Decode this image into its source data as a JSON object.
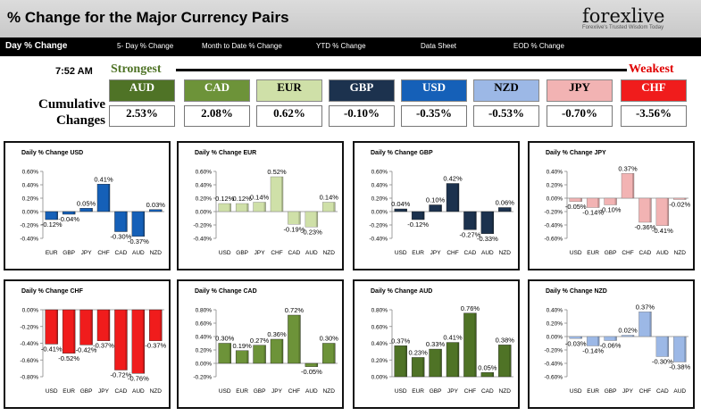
{
  "header": {
    "title": "% Change for the Major Currency Pairs",
    "logo_text": "forexlive",
    "logo_tagline": "Forexlive's Trusted Wisdom Today"
  },
  "nav": {
    "items": [
      "Day % Change",
      "5- Day % Change",
      "Month to Date % Change",
      "YTD % Change",
      "Data Sheet",
      "EOD % Change"
    ]
  },
  "summary": {
    "time": "7:52 AM",
    "strongest_label": "Strongest",
    "weakest_label": "Weakest",
    "cumulative_label_1": "Cumulative",
    "cumulative_label_2": "Changes",
    "currencies": [
      {
        "code": "AUD",
        "value": "2.53%",
        "color": "#4f7326",
        "text_color": "#ffffff"
      },
      {
        "code": "CAD",
        "value": "2.08%",
        "color": "#6d9339",
        "text_color": "#ffffff"
      },
      {
        "code": "EUR",
        "value": "0.62%",
        "color": "#cfe0a8",
        "text_color": "#000000"
      },
      {
        "code": "GBP",
        "value": "-0.10%",
        "color": "#1c324e",
        "text_color": "#ffffff"
      },
      {
        "code": "USD",
        "value": "-0.35%",
        "color": "#1560b8",
        "text_color": "#ffffff"
      },
      {
        "code": "NZD",
        "value": "-0.53%",
        "color": "#9cb8e6",
        "text_color": "#000000"
      },
      {
        "code": "JPY",
        "value": "-0.70%",
        "color": "#f2b3b3",
        "text_color": "#000000"
      },
      {
        "code": "CHF",
        "value": "-3.56%",
        "color": "#f01c1c",
        "text_color": "#ffffff"
      }
    ]
  },
  "chart_data": [
    {
      "type": "bar",
      "title": "Daily % Change USD",
      "categories": [
        "EUR",
        "GBP",
        "JPY",
        "CHF",
        "CAD",
        "AUD",
        "NZD"
      ],
      "values": [
        -0.12,
        -0.04,
        0.05,
        0.41,
        -0.3,
        -0.37,
        0.03
      ],
      "labels": [
        "-0.12%",
        "-0.04%",
        "0.05%",
        "0.41%",
        "-0.30%",
        "-0.37%",
        "0.03%"
      ],
      "yticks": [
        "0.60%",
        "0.40%",
        "0.20%",
        "0.00%",
        "-0.20%",
        "-0.40%"
      ],
      "ylim": [
        -0.4,
        0.6
      ],
      "color": "#1560b8",
      "bg": "#ffffff"
    },
    {
      "type": "bar",
      "title": "Daily % Change EUR",
      "categories": [
        "USD",
        "GBP",
        "JPY",
        "CHF",
        "CAD",
        "AUD",
        "NZD"
      ],
      "values": [
        0.12,
        0.12,
        0.14,
        0.52,
        -0.19,
        -0.23,
        0.14
      ],
      "labels": [
        "0.12%",
        "0.12%",
        "0.14%",
        "0.52%",
        "-0.19%",
        "-0.23%",
        "0.14%"
      ],
      "yticks": [
        "0.60%",
        "0.40%",
        "0.20%",
        "0.00%",
        "-0.20%",
        "-0.40%"
      ],
      "ylim": [
        -0.4,
        0.6
      ],
      "color": "#cfe0a8",
      "bg": "#ffffff"
    },
    {
      "type": "bar",
      "title": "Daily % Change GBP",
      "categories": [
        "USD",
        "EUR",
        "JPY",
        "CHF",
        "CAD",
        "AUD",
        "NZD"
      ],
      "values": [
        0.04,
        -0.12,
        0.1,
        0.42,
        -0.27,
        -0.33,
        0.06
      ],
      "labels": [
        "0.04%",
        "-0.12%",
        "0.10%",
        "0.42%",
        "-0.27%",
        "-0.33%",
        "0.06%"
      ],
      "yticks": [
        "0.60%",
        "0.40%",
        "0.20%",
        "0.00%",
        "-0.20%",
        "-0.40%"
      ],
      "ylim": [
        -0.4,
        0.6
      ],
      "color": "#1c324e",
      "bg": "#ffffff"
    },
    {
      "type": "bar",
      "title": "Daily % Change JPY",
      "categories": [
        "USD",
        "EUR",
        "GBP",
        "CHF",
        "CAD",
        "AUD",
        "NZD"
      ],
      "values": [
        -0.05,
        -0.14,
        -0.1,
        0.37,
        -0.36,
        -0.41,
        -0.02
      ],
      "labels": [
        "-0.05%",
        "-0.14%",
        "-0.10%",
        "0.37%",
        "-0.36%",
        "-0.41%",
        "-0.02%"
      ],
      "yticks": [
        "0.40%",
        "0.20%",
        "0.00%",
        "-0.20%",
        "-0.40%",
        "-0.60%"
      ],
      "ylim": [
        -0.6,
        0.4
      ],
      "color": "#f2b3b3",
      "bg": "#ffffff"
    },
    {
      "type": "bar",
      "title": "Daily % Change CHF",
      "categories": [
        "USD",
        "EUR",
        "GBP",
        "JPY",
        "CAD",
        "AUD",
        "NZD"
      ],
      "values": [
        -0.41,
        -0.52,
        -0.42,
        -0.37,
        -0.72,
        -0.76,
        -0.37
      ],
      "labels": [
        "-0.41%",
        "-0.52%",
        "-0.42%",
        "-0.37%",
        "-0.72%",
        "-0.76%",
        "-0.37%"
      ],
      "yticks": [
        "0.00%",
        "-0.20%",
        "-0.40%",
        "-0.60%",
        "-0.80%"
      ],
      "ylim": [
        -0.8,
        0.0
      ],
      "color": "#f01c1c",
      "bg": "#ffffff"
    },
    {
      "type": "bar",
      "title": "Daily % Change CAD",
      "categories": [
        "USD",
        "EUR",
        "GBP",
        "JPY",
        "CHF",
        "AUD",
        "NZD"
      ],
      "values": [
        0.3,
        0.19,
        0.27,
        0.36,
        0.72,
        -0.05,
        0.3
      ],
      "labels": [
        "0.30%",
        "0.19%",
        "0.27%",
        "0.36%",
        "0.72%",
        "-0.05%",
        "0.30%"
      ],
      "yticks": [
        "0.80%",
        "0.60%",
        "0.40%",
        "0.20%",
        "0.00%",
        "-0.20%"
      ],
      "ylim": [
        -0.2,
        0.8
      ],
      "color": "#6d9339",
      "bg": "#ffffff"
    },
    {
      "type": "bar",
      "title": "Daily % Change AUD",
      "categories": [
        "USD",
        "EUR",
        "GBP",
        "JPY",
        "CHF",
        "CAD",
        "NZD"
      ],
      "values": [
        0.37,
        0.23,
        0.33,
        0.41,
        0.76,
        0.05,
        0.38
      ],
      "labels": [
        "0.37%",
        "0.23%",
        "0.33%",
        "0.41%",
        "0.76%",
        "0.05%",
        "0.38%"
      ],
      "yticks": [
        "0.80%",
        "0.60%",
        "0.40%",
        "0.20%",
        "0.00%"
      ],
      "ylim": [
        0.0,
        0.8
      ],
      "color": "#4f7326",
      "bg": "#ffffff"
    },
    {
      "type": "bar",
      "title": "Daily % Change NZD",
      "categories": [
        "USD",
        "EUR",
        "GBP",
        "JPY",
        "CHF",
        "CAD",
        "AUD"
      ],
      "values": [
        -0.03,
        -0.14,
        -0.06,
        0.02,
        0.37,
        -0.3,
        -0.38
      ],
      "labels": [
        "-0.03%",
        "-0.14%",
        "-0.06%",
        "0.02%",
        "0.37%",
        "-0.30%",
        "-0.38%"
      ],
      "yticks": [
        "0.40%",
        "0.20%",
        "0.00%",
        "-0.20%",
        "-0.40%",
        "-0.60%"
      ],
      "ylim": [
        -0.6,
        0.4
      ],
      "color": "#9cb8e6",
      "bg": "#ffffff"
    }
  ]
}
